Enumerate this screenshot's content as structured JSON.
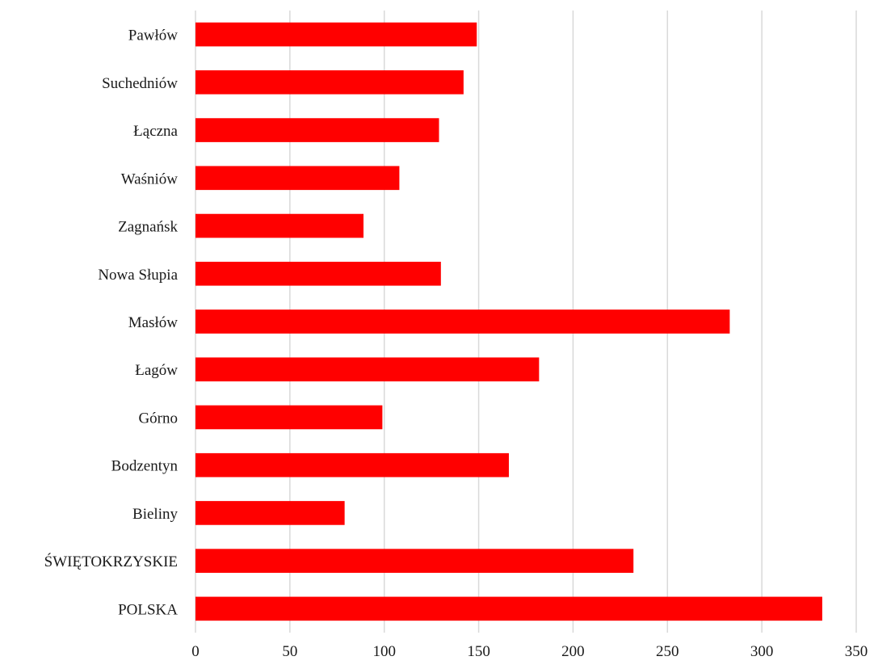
{
  "chart_data": {
    "type": "bar",
    "orientation": "horizontal",
    "categories": [
      "Pawłów",
      "Suchedniów",
      "Łączna",
      "Waśniów",
      "Zagnańsk",
      "Nowa Słupia",
      "Masłów",
      "Łagów",
      "Górno",
      "Bodzentyn",
      "Bieliny",
      "ŚWIĘTOKRZYSKIE",
      "POLSKA"
    ],
    "values": [
      149,
      142,
      129,
      108,
      89,
      130,
      283,
      182,
      99,
      166,
      79,
      232,
      332
    ],
    "xlim": [
      0,
      350
    ],
    "xticks": [
      0,
      50,
      100,
      150,
      200,
      250,
      300,
      350
    ],
    "grid": "vertical",
    "bar_color": "#ff0000",
    "grid_color": "#d9d9d9",
    "title": "",
    "xlabel": "",
    "ylabel": ""
  }
}
